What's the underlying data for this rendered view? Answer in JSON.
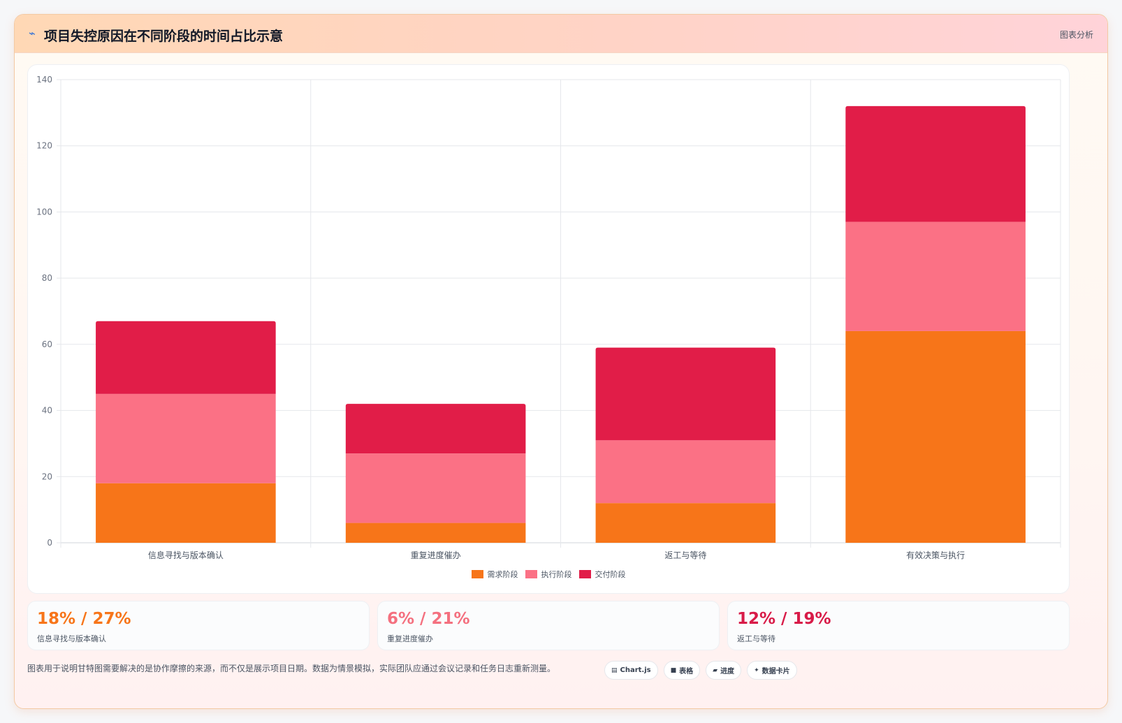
{
  "header": {
    "icon": "pulse-icon",
    "title": "项目失控原因在不同阶段的时间占比示意",
    "tag": "图表分析"
  },
  "chart_data": {
    "type": "bar",
    "stacked": true,
    "categories": [
      "信息寻找与版本确认",
      "重复进度催办",
      "返工与等待",
      "有效决策与执行"
    ],
    "series": [
      {
        "name": "需求阶段",
        "color": "#f77519",
        "values": [
          18,
          6,
          12,
          64
        ]
      },
      {
        "name": "执行阶段",
        "color": "#fb7185",
        "values": [
          27,
          21,
          19,
          33
        ]
      },
      {
        "name": "交付阶段",
        "color": "#e11d48",
        "values": [
          22,
          15,
          28,
          35
        ]
      }
    ],
    "ylim": [
      0,
      140
    ],
    "yticks": [
      0,
      20,
      40,
      60,
      80,
      100,
      120,
      140
    ],
    "grid": true,
    "legend_position": "bottom"
  },
  "stats": [
    {
      "value": "18% / 27%",
      "label": "信息寻找与版本确认",
      "color": "#f77519"
    },
    {
      "value": "6% / 21%",
      "label": "重复进度催办",
      "color": "#f4707f"
    },
    {
      "value": "12% / 19%",
      "label": "返工与等待",
      "color": "#d81b48"
    }
  ],
  "footnote": "图表用于说明甘特图需要解决的是协作摩擦的来源，而不仅是展示项目日期。数据为情景模拟，实际团队应通过会议记录和任务日志重新测量。",
  "chips": [
    {
      "icon": "chart-icon",
      "glyph": "▤",
      "label": "Chart.js"
    },
    {
      "icon": "table-icon",
      "glyph": "■",
      "label": "表格"
    },
    {
      "icon": "progress-icon",
      "glyph": "▰",
      "label": "进度"
    },
    {
      "icon": "sparkle-icon",
      "glyph": "✦",
      "label": "数据卡片"
    }
  ]
}
